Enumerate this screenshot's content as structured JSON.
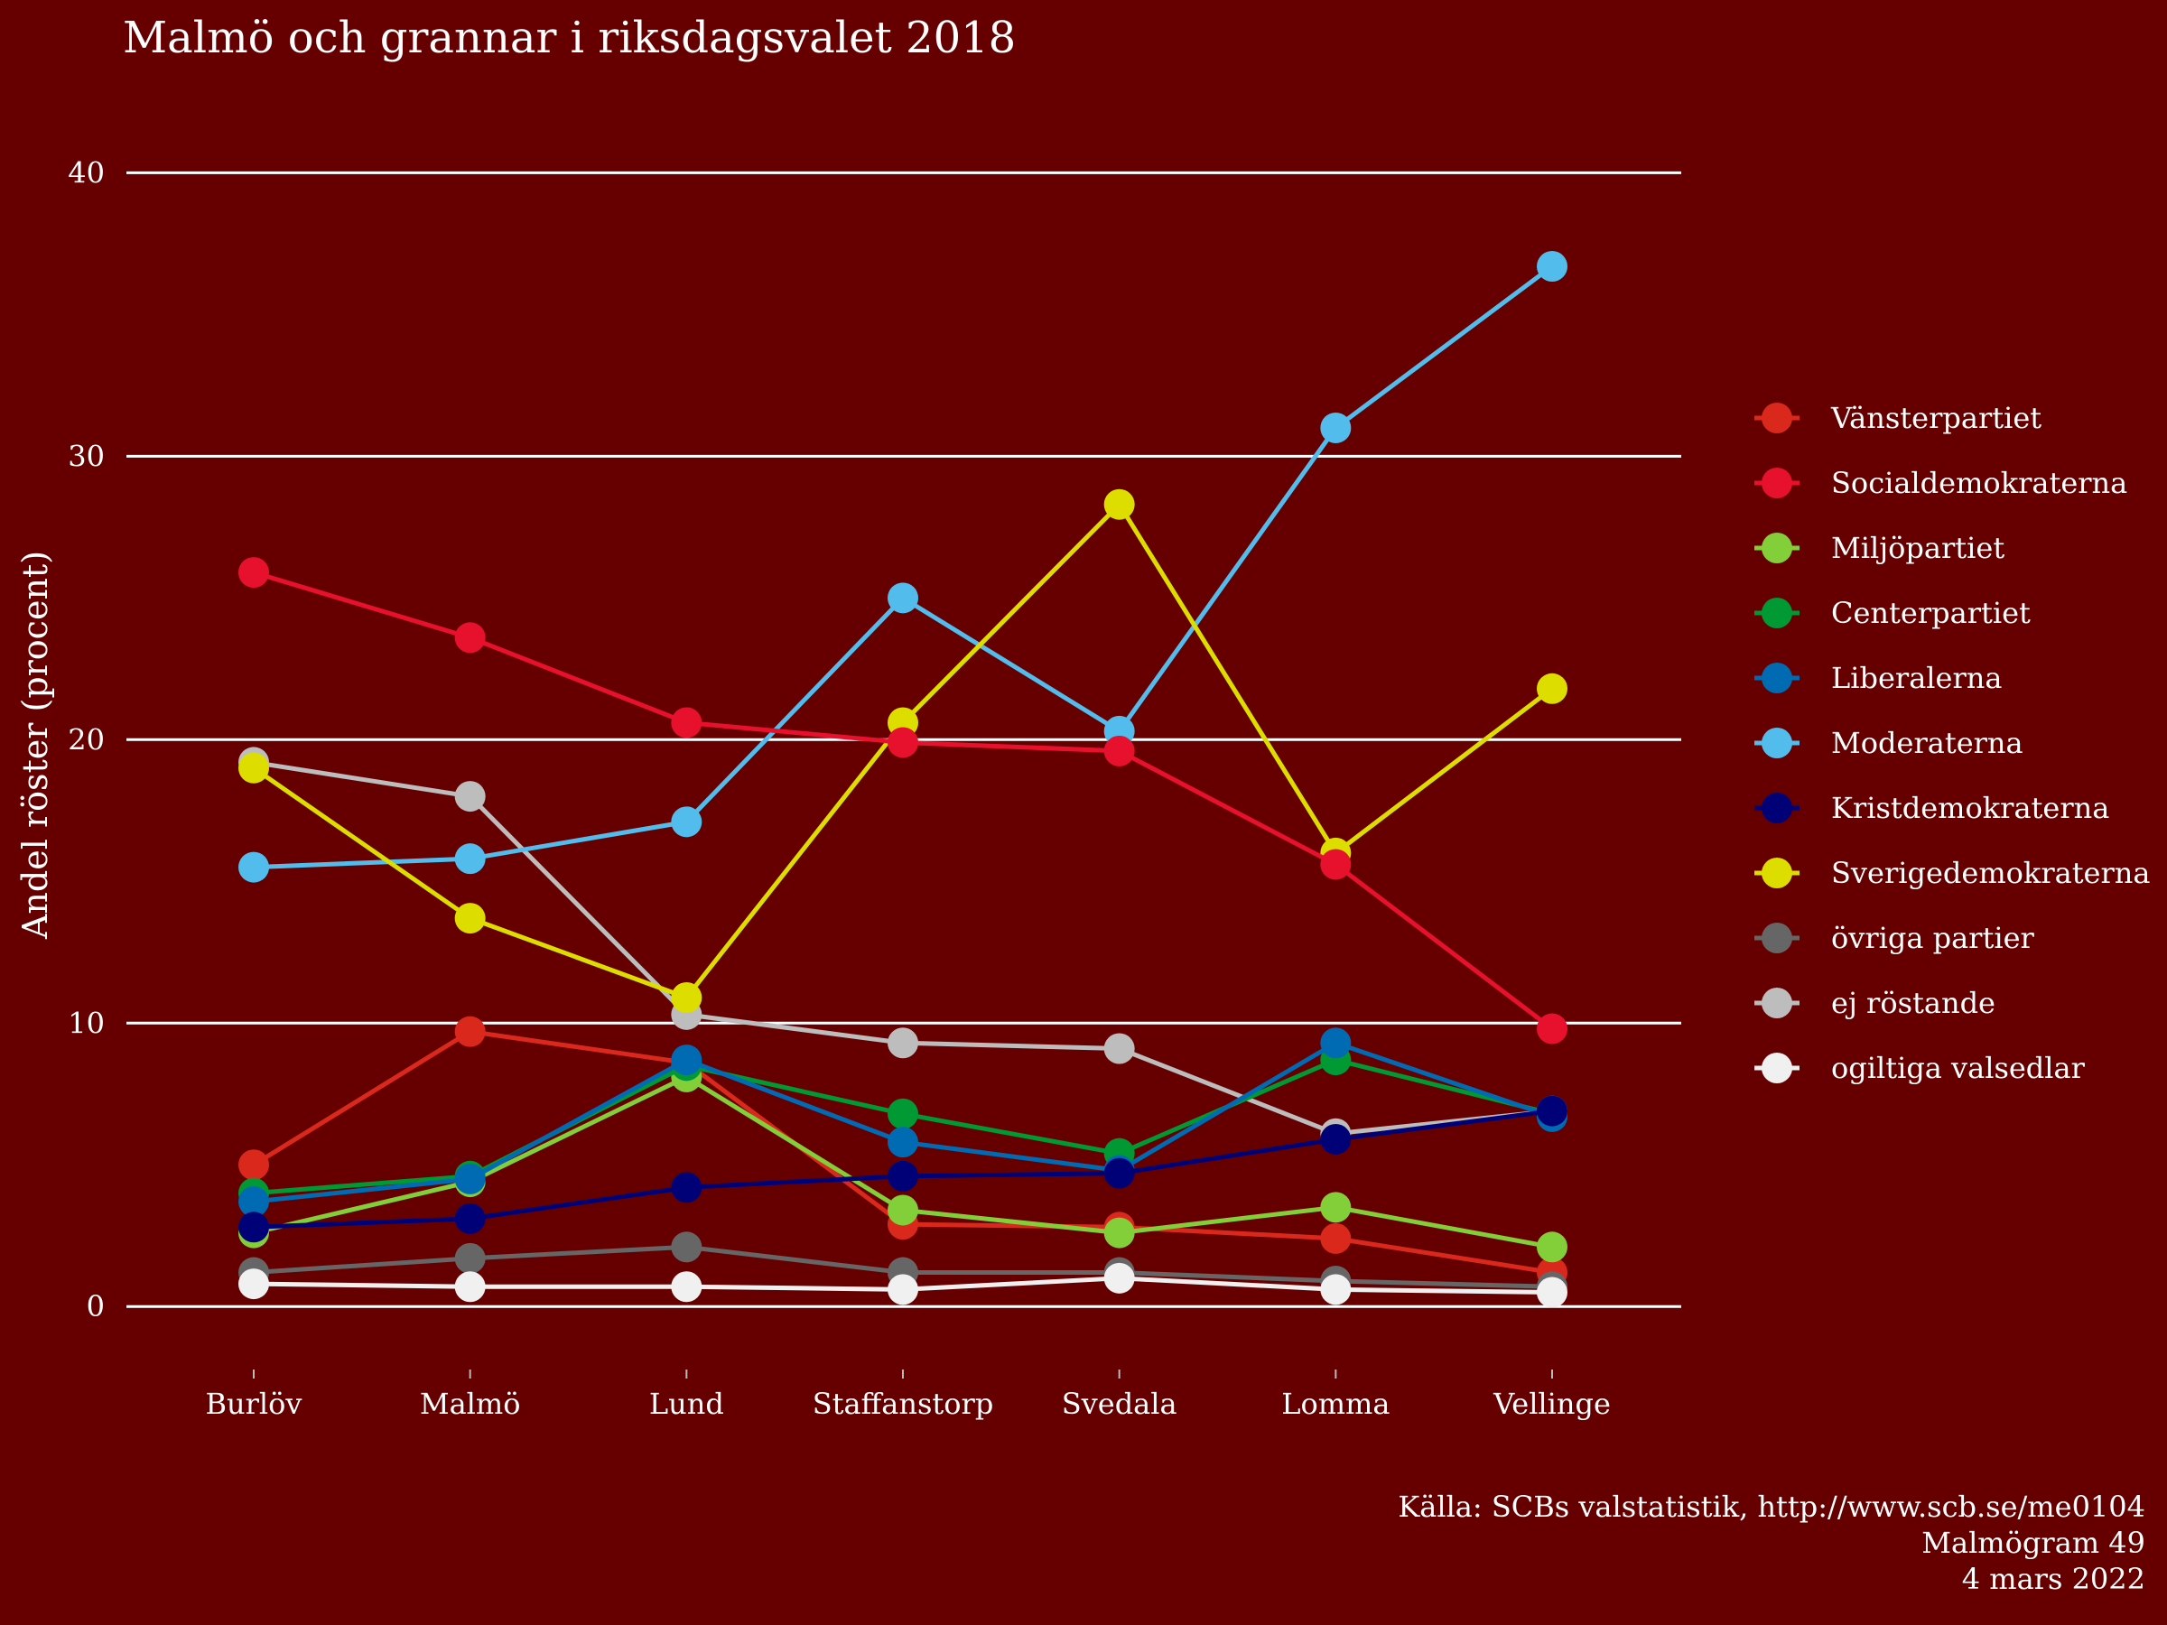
{
  "chart_data": {
    "type": "line",
    "title": "Malmö och grannar i riksdagsvalet 2018",
    "ylabel": "Andel röster (procent)",
    "xlabel": "",
    "ylim": [
      -2,
      41
    ],
    "yticks": [
      0,
      10,
      20,
      30,
      40
    ],
    "grid": "horizontal-major",
    "legend": "right",
    "categories": [
      "Burlöv",
      "Malmö",
      "Lund",
      "Staffanstorp",
      "Svedala",
      "Lomma",
      "Vellinge"
    ],
    "series": [
      {
        "name": "ej röstande",
        "color": "#BDBDBD",
        "values": [
          19.2,
          18.0,
          10.3,
          9.3,
          9.1,
          6.1,
          6.9
        ]
      },
      {
        "name": "Vänsterpartiet",
        "color": "#DA291C",
        "values": [
          5.0,
          9.7,
          8.6,
          2.9,
          2.8,
          2.4,
          1.2
        ]
      },
      {
        "name": "Miljöpartiet",
        "color": "#83CF39",
        "values": [
          2.6,
          4.4,
          8.1,
          3.4,
          2.6,
          3.5,
          2.1
        ]
      },
      {
        "name": "Centerpartiet",
        "color": "#009933",
        "values": [
          4.0,
          4.6,
          8.5,
          6.8,
          5.4,
          8.7,
          6.8
        ]
      },
      {
        "name": "Liberalerna",
        "color": "#006AB3",
        "values": [
          3.7,
          4.5,
          8.7,
          5.8,
          4.8,
          9.3,
          6.7
        ]
      },
      {
        "name": "Kristdemokraterna",
        "color": "#000077",
        "values": [
          2.8,
          3.1,
          4.2,
          4.6,
          4.7,
          5.9,
          6.9
        ]
      },
      {
        "name": "övriga partier",
        "color": "#666666",
        "values": [
          1.2,
          1.7,
          2.1,
          1.2,
          1.2,
          0.9,
          0.7
        ]
      },
      {
        "name": "ogiltiga valsedlar",
        "color": "#F0F0F0",
        "values": [
          0.8,
          0.7,
          0.7,
          0.6,
          1.0,
          0.6,
          0.5
        ]
      },
      {
        "name": "Moderaterna",
        "color": "#52BDEC",
        "values": [
          15.5,
          15.8,
          17.1,
          25.0,
          20.3,
          31.0,
          36.7
        ]
      },
      {
        "name": "Sverigedemokraterna",
        "color": "#DDDD00",
        "values": [
          19.0,
          13.7,
          10.9,
          20.6,
          28.3,
          16.0,
          21.8
        ]
      },
      {
        "name": "Socialdemokraterna",
        "color": "#E8112D",
        "values": [
          25.9,
          23.6,
          20.6,
          19.9,
          19.6,
          15.6,
          9.8
        ]
      }
    ],
    "legend_order": [
      "Vänsterpartiet",
      "Socialdemokraterna",
      "Miljöpartiet",
      "Centerpartiet",
      "Liberalerna",
      "Moderaterna",
      "Kristdemokraterna",
      "Sverigedemokraterna",
      "övriga partier",
      "ej röstande",
      "ogiltiga valsedlar"
    ],
    "caption": [
      "Källa: SCBs valstatistik, http://www.scb.se/me0104",
      "Malmögram 49",
      "4 mars 2022"
    ]
  }
}
